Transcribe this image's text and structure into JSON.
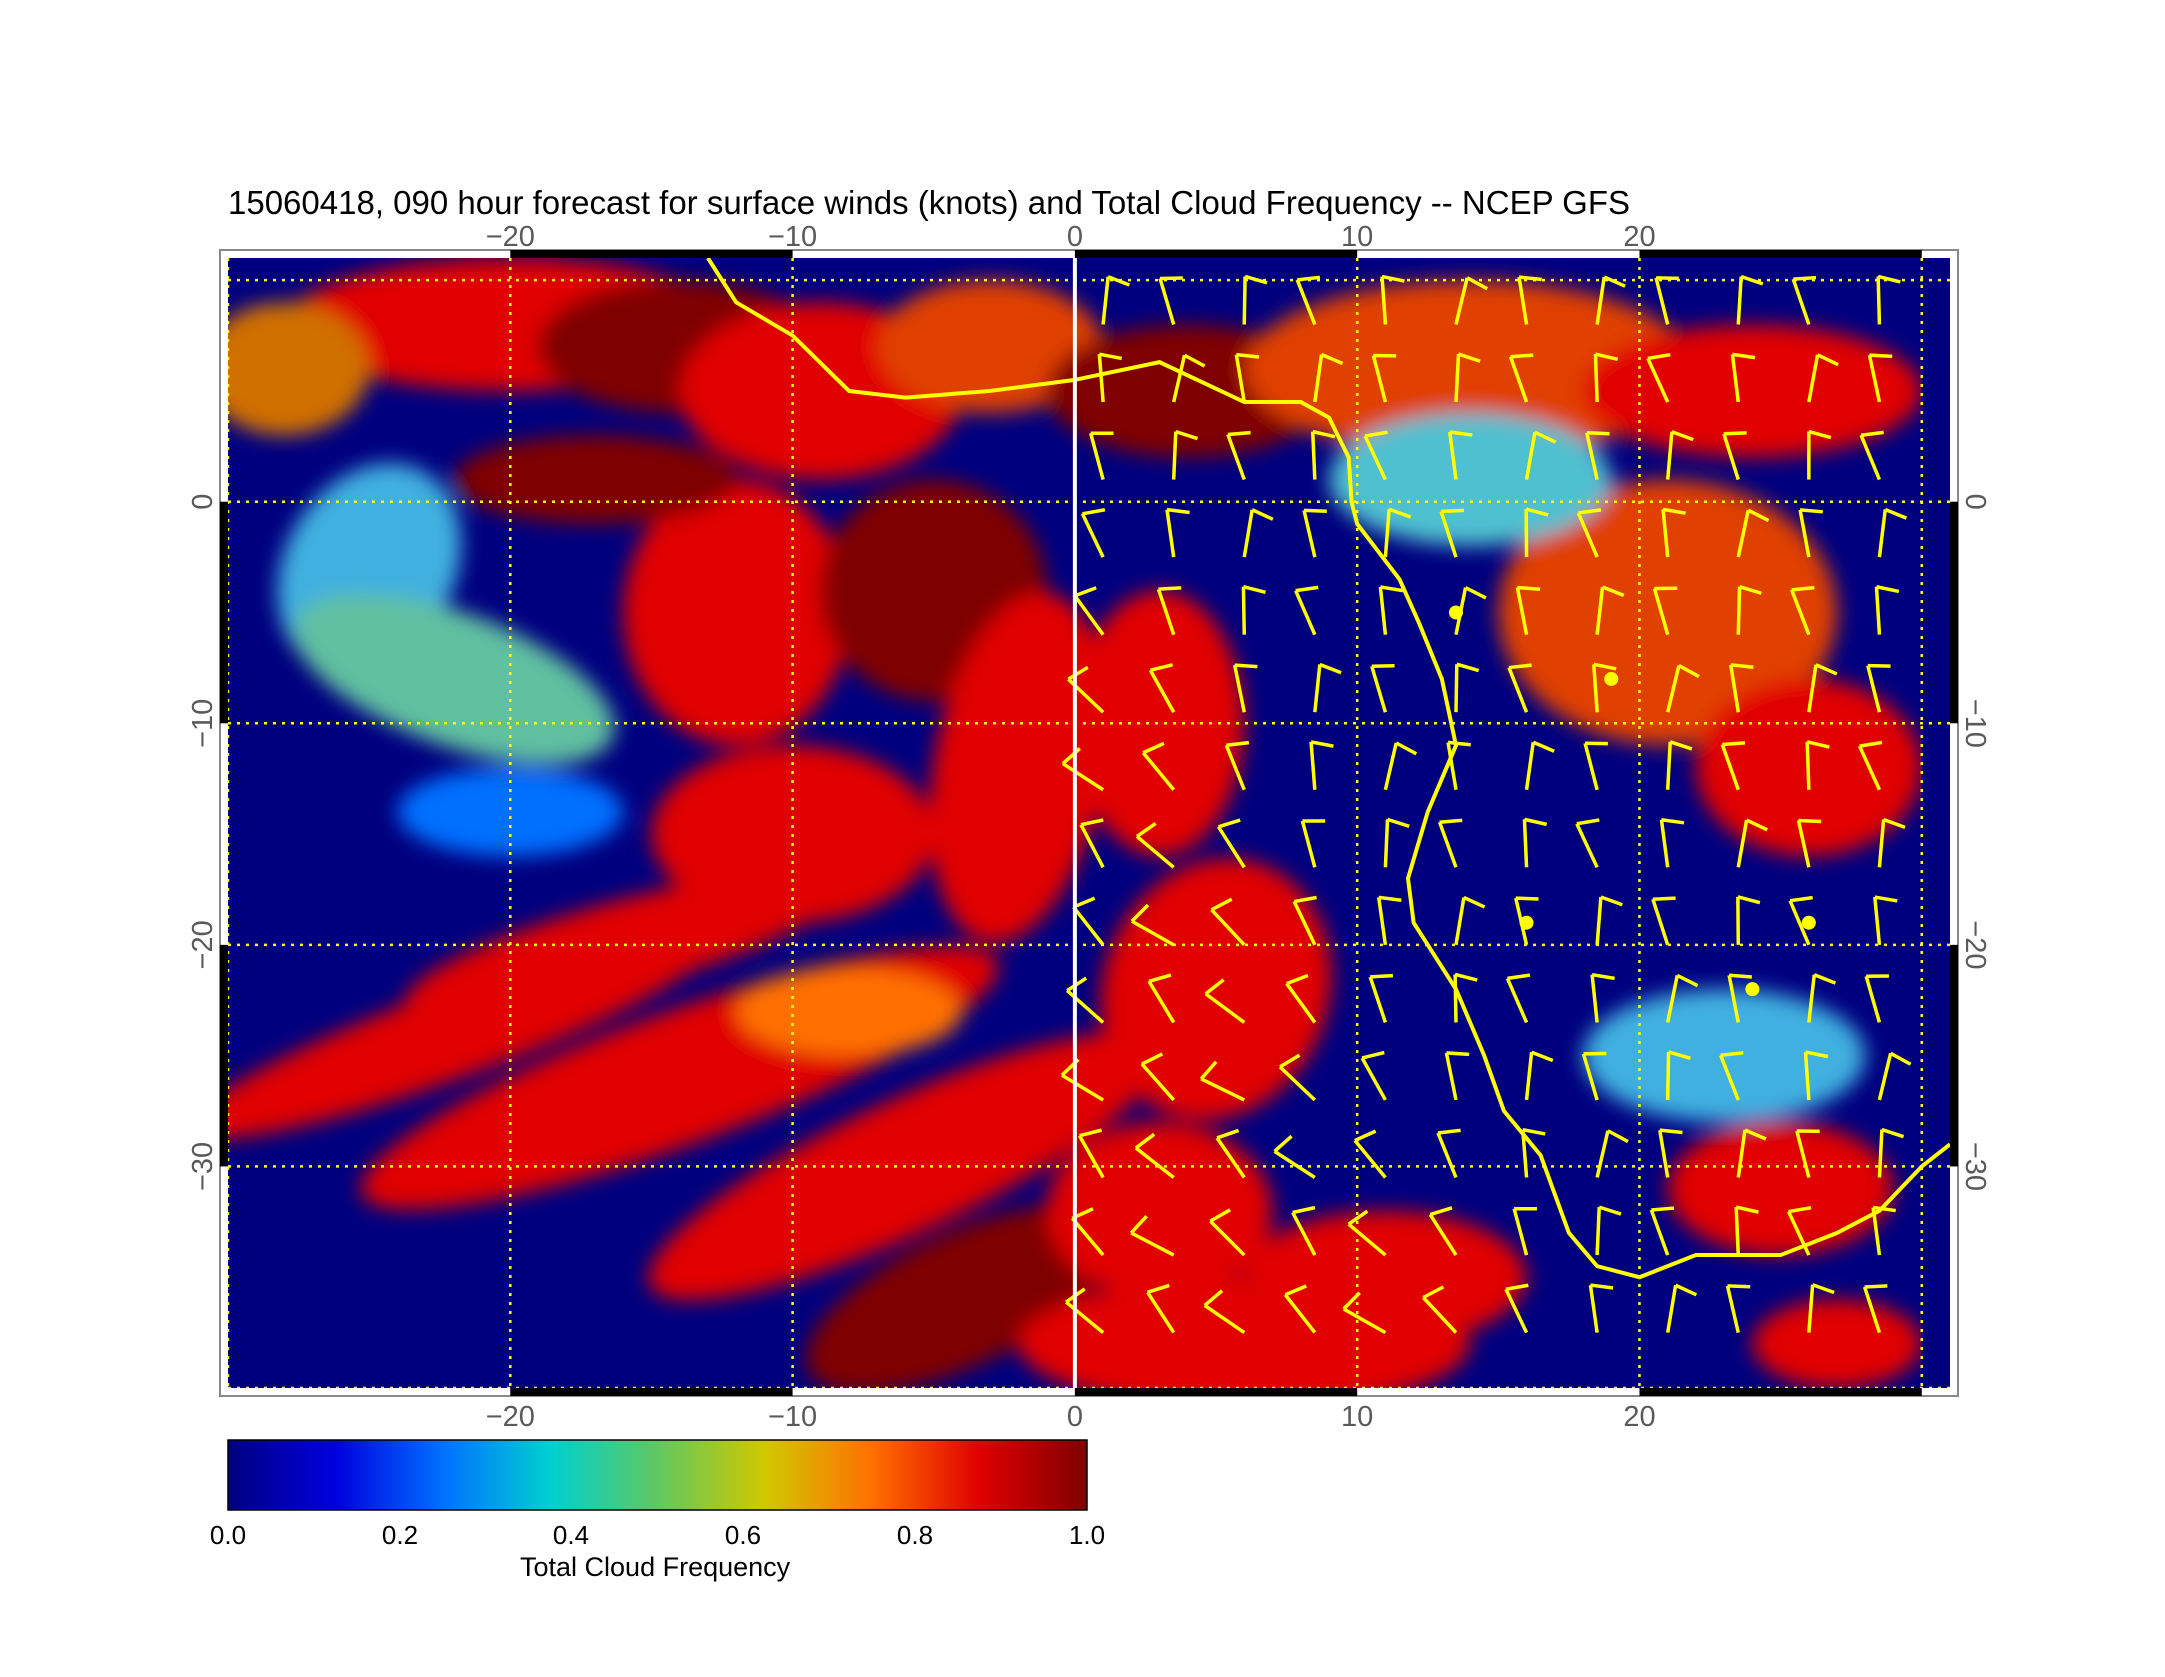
{
  "title": "15060418, 090 hour forecast for surface winds (knots) and Total Cloud Frequency -- NCEP GFS",
  "map": {
    "lon_range": [
      -30,
      31
    ],
    "lat_range": [
      -40,
      11
    ],
    "lon_ticks": [
      {
        "value": -20,
        "label": "−20"
      },
      {
        "value": -10,
        "label": "−10"
      },
      {
        "value": 0,
        "label": "0"
      },
      {
        "value": 10,
        "label": "10"
      },
      {
        "value": 20,
        "label": "20"
      }
    ],
    "lat_ticks": [
      {
        "value": 0,
        "label": "0"
      },
      {
        "value": -10,
        "label": "−10"
      },
      {
        "value": -20,
        "label": "−20"
      },
      {
        "value": -30,
        "label": "−30"
      }
    ],
    "grid": "dotted yellow every 10°",
    "overlays": [
      "surface wind barbs (knots)",
      "coastlines",
      "prime meridian"
    ],
    "colors": {
      "coast": "#ffff00",
      "barb": "#ffff00",
      "meridian": "#ffffff",
      "grid": "#ffff00"
    }
  },
  "colorbar": {
    "title": "Total Cloud Frequency",
    "range": [
      0.0,
      1.0
    ],
    "tick_labels": [
      "0.0",
      "0.2",
      "0.4",
      "0.6",
      "0.8",
      "1.0"
    ],
    "colormap": "jet",
    "colors": [
      "#00007f",
      "#0000e0",
      "#0070ff",
      "#00d0d0",
      "#60c860",
      "#d0c800",
      "#ff7000",
      "#e00000",
      "#7f0000"
    ]
  }
}
